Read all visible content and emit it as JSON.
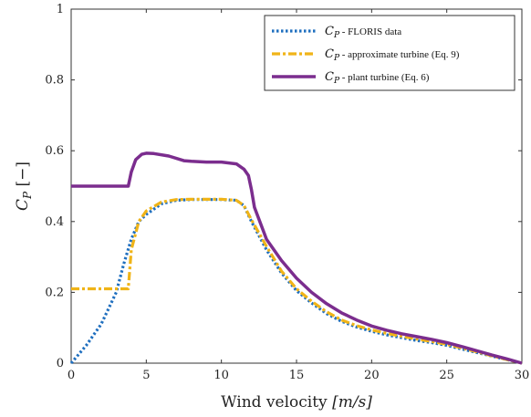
{
  "chart_data": {
    "type": "line",
    "xlabel": "Wind velocity [m/s]",
    "ylabel": "C_P [−]",
    "xlim": [
      0,
      30
    ],
    "ylim": [
      0,
      1
    ],
    "x_ticks": [
      0,
      5,
      10,
      15,
      20,
      25,
      30
    ],
    "y_ticks": [
      0,
      0.2,
      0.4,
      0.6,
      0.8,
      1
    ],
    "y_tick_labels": [
      "0",
      "0.2",
      "0.4",
      "0.6",
      "0.8",
      "1"
    ],
    "grid": false,
    "legend_position": "top-right",
    "series": [
      {
        "name": "C_P - FLORIS data",
        "legend_symbol": "C",
        "legend_subscript": "P",
        "legend_text": " - FLORIS data",
        "color": "#1f6fbf",
        "style": "dotted",
        "points": [
          [
            0,
            0
          ],
          [
            1,
            0.05
          ],
          [
            2,
            0.11
          ],
          [
            3,
            0.2
          ],
          [
            3.5,
            0.28
          ],
          [
            4,
            0.35
          ],
          [
            4.5,
            0.4
          ],
          [
            5,
            0.42
          ],
          [
            6,
            0.45
          ],
          [
            7,
            0.46
          ],
          [
            8,
            0.462
          ],
          [
            9,
            0.462
          ],
          [
            10,
            0.462
          ],
          [
            11,
            0.46
          ],
          [
            11.5,
            0.445
          ],
          [
            12,
            0.4
          ],
          [
            13,
            0.32
          ],
          [
            14,
            0.255
          ],
          [
            15,
            0.205
          ],
          [
            16,
            0.17
          ],
          [
            17,
            0.14
          ],
          [
            18,
            0.118
          ],
          [
            19,
            0.102
          ],
          [
            20,
            0.09
          ],
          [
            21,
            0.08
          ],
          [
            22,
            0.072
          ],
          [
            23,
            0.064
          ],
          [
            24,
            0.058
          ],
          [
            25,
            0.05
          ],
          [
            26,
            0.04
          ],
          [
            27,
            0.03
          ],
          [
            28,
            0.02
          ],
          [
            29,
            0.01
          ],
          [
            30,
            0
          ]
        ]
      },
      {
        "name": "C_P - approximate turbine (Eq. 9)",
        "legend_symbol": "C",
        "legend_subscript": "P",
        "legend_text": " - approximate turbine (Eq. 9)",
        "color": "#f0b418",
        "style": "dashdot",
        "points": [
          [
            0,
            0.21
          ],
          [
            3.8,
            0.21
          ],
          [
            4,
            0.32
          ],
          [
            4.5,
            0.4
          ],
          [
            5,
            0.43
          ],
          [
            6,
            0.455
          ],
          [
            7,
            0.462
          ],
          [
            8,
            0.463
          ],
          [
            9,
            0.463
          ],
          [
            10,
            0.463
          ],
          [
            11,
            0.46
          ],
          [
            11.5,
            0.445
          ],
          [
            12,
            0.405
          ],
          [
            13,
            0.33
          ],
          [
            14,
            0.26
          ],
          [
            15,
            0.21
          ],
          [
            16,
            0.175
          ],
          [
            17,
            0.145
          ],
          [
            18,
            0.122
          ],
          [
            19,
            0.106
          ],
          [
            20,
            0.094
          ],
          [
            21,
            0.084
          ],
          [
            22,
            0.076
          ],
          [
            23,
            0.068
          ],
          [
            24,
            0.061
          ],
          [
            25,
            0.053
          ],
          [
            26,
            0.043
          ],
          [
            27,
            0.032
          ],
          [
            28,
            0.021
          ],
          [
            29,
            0.01
          ],
          [
            30,
            0
          ]
        ]
      },
      {
        "name": "C_P - plant turbine (Eq. 6)",
        "legend_symbol": "C",
        "legend_subscript": "P",
        "legend_text": " - plant turbine (Eq. 6)",
        "color": "#7b2d8e",
        "style": "solid",
        "points": [
          [
            0,
            0.5
          ],
          [
            3.8,
            0.5
          ],
          [
            4,
            0.54
          ],
          [
            4.3,
            0.575
          ],
          [
            4.7,
            0.59
          ],
          [
            5,
            0.593
          ],
          [
            5.5,
            0.592
          ],
          [
            6.5,
            0.585
          ],
          [
            7.5,
            0.572
          ],
          [
            8,
            0.57
          ],
          [
            9,
            0.568
          ],
          [
            10,
            0.568
          ],
          [
            11,
            0.563
          ],
          [
            11.5,
            0.548
          ],
          [
            11.8,
            0.53
          ],
          [
            12,
            0.49
          ],
          [
            12.2,
            0.44
          ],
          [
            13,
            0.35
          ],
          [
            14,
            0.29
          ],
          [
            15,
            0.24
          ],
          [
            16,
            0.2
          ],
          [
            17,
            0.168
          ],
          [
            18,
            0.142
          ],
          [
            19,
            0.122
          ],
          [
            20,
            0.105
          ],
          [
            21,
            0.093
          ],
          [
            22,
            0.083
          ],
          [
            23,
            0.075
          ],
          [
            24,
            0.067
          ],
          [
            25,
            0.058
          ],
          [
            26,
            0.047
          ],
          [
            27,
            0.035
          ],
          [
            28,
            0.023
          ],
          [
            29,
            0.012
          ],
          [
            30,
            0
          ]
        ]
      }
    ]
  },
  "axes": {
    "xlabel_main": "Wind velocity ",
    "xlabel_unit": "[m/s]",
    "ylabel_sym": "C",
    "ylabel_sub": "P",
    "ylabel_unit": " [−]"
  }
}
